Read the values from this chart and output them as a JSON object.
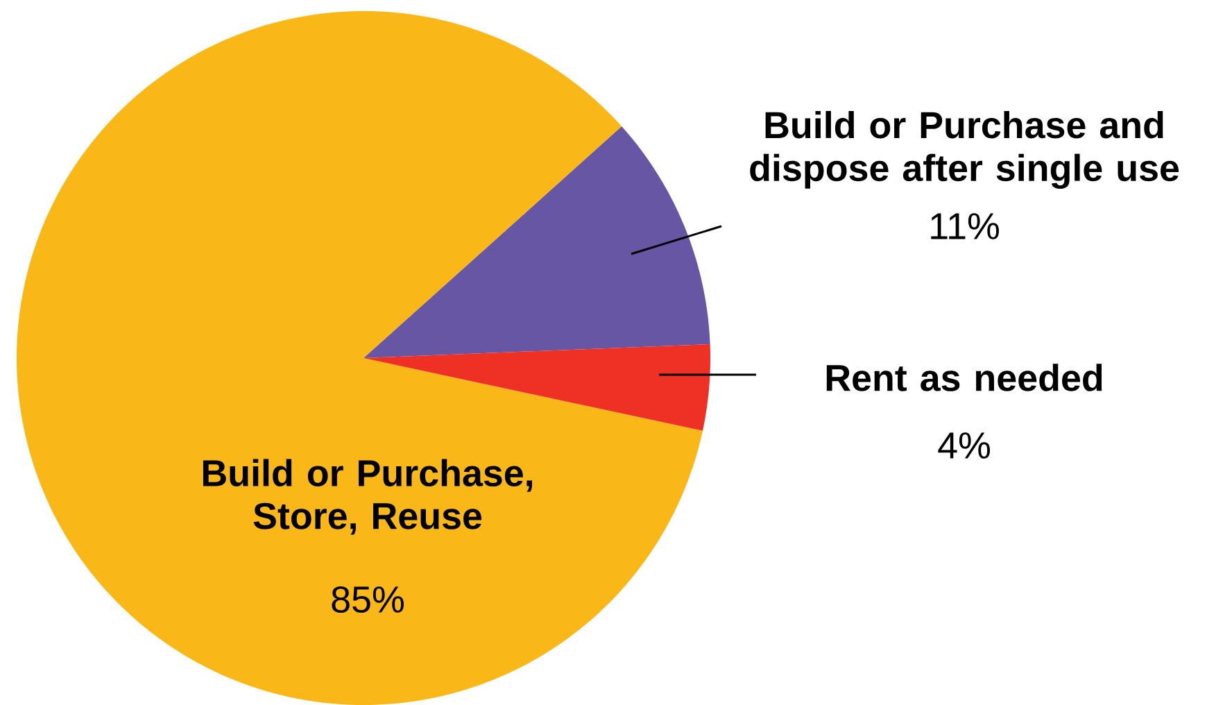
{
  "chart_data": {
    "type": "pie",
    "categories": [
      "Build or Purchase and dispose after single use",
      "Build or Purchase, Store, Reuse",
      "Rent as needed"
    ],
    "values": [
      11,
      85,
      4
    ],
    "colors": [
      "#6656a4",
      "#f9b718",
      "#ee3124"
    ],
    "value_labels": [
      "11%",
      "85%",
      "4%"
    ]
  }
}
